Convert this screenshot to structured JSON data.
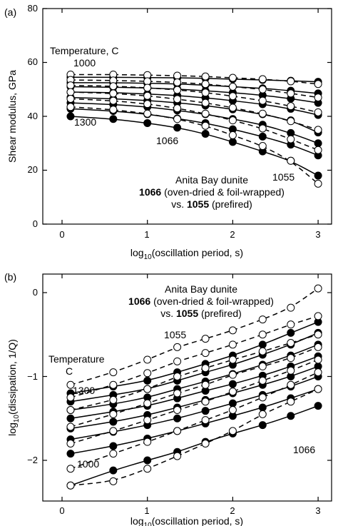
{
  "chart_data": [
    {
      "type": "scatter",
      "panel_label": "(a)",
      "xlabel": {
        "prefix": "log",
        "sub": "10",
        "suffix": "(oscillation period, s)"
      },
      "ylabel": "Shear modulus, GPa",
      "xlim": [
        -0.3,
        3.2
      ],
      "ylim": [
        0,
        80
      ],
      "xticks": [
        "0",
        "1",
        "2",
        "3"
      ],
      "yticks": [
        "0",
        "20",
        "40",
        "60",
        "80"
      ],
      "annotations": {
        "temperature_title": "Temperature, C",
        "temp_high": "1000",
        "temp_low": "1300",
        "label_1066": "1066",
        "label_1055": "1055",
        "caption_line1": "Anita Bay dunite",
        "caption_bold2": "1066",
        "caption_line2": " (oven-dried & foil-wrapped)",
        "caption_pre3": "vs. ",
        "caption_bold3": "1055",
        "caption_line3": " (prefired)"
      },
      "x": [
        0.1,
        0.6,
        1.0,
        1.35,
        1.68,
        2.0,
        2.35,
        2.68,
        3.0
      ],
      "series": [
        {
          "marker": "filled",
          "line": "solid",
          "values": [
            54.5,
            54.5,
            54.4,
            54.3,
            54.1,
            53.8,
            53.5,
            53.2,
            52.8
          ]
        },
        {
          "marker": "filled",
          "line": "solid",
          "values": [
            52.5,
            52.5,
            52.3,
            52.0,
            51.6,
            51.0,
            50.4,
            49.5,
            48.5
          ]
        },
        {
          "marker": "filled",
          "line": "solid",
          "values": [
            51.0,
            50.8,
            50.5,
            50.1,
            49.5,
            48.8,
            47.8,
            46.6,
            45.0
          ]
        },
        {
          "marker": "filled",
          "line": "solid",
          "values": [
            49.0,
            48.8,
            48.3,
            47.7,
            46.9,
            45.8,
            44.5,
            42.8,
            40.5
          ]
        },
        {
          "marker": "filled",
          "line": "solid",
          "values": [
            47.0,
            46.5,
            45.9,
            45.0,
            44.0,
            42.6,
            40.8,
            38.5,
            34.0
          ]
        },
        {
          "marker": "filled",
          "line": "solid",
          "values": [
            45.0,
            44.4,
            43.5,
            42.2,
            40.8,
            39.0,
            36.9,
            33.8,
            30.0
          ]
        },
        {
          "marker": "filled",
          "line": "solid",
          "values": [
            42.8,
            42.0,
            40.8,
            39.2,
            37.5,
            35.2,
            32.5,
            29.5,
            25.5
          ]
        },
        {
          "marker": "filled",
          "line": "solid",
          "values": [
            40.0,
            39.0,
            37.5,
            35.8,
            33.5,
            30.5,
            27.0,
            23.5,
            18.0
          ]
        },
        {
          "marker": "open",
          "line": "dashed",
          "values": [
            55.5,
            55.5,
            55.3,
            55.1,
            54.8,
            54.3,
            53.8,
            53.0,
            52.0
          ]
        },
        {
          "marker": "open",
          "line": "dashed",
          "values": [
            53.5,
            53.3,
            53.0,
            52.6,
            52.0,
            51.0,
            50.0,
            48.5,
            47.0
          ]
        },
        {
          "marker": "open",
          "line": "dashed",
          "values": [
            51.5,
            51.2,
            50.6,
            49.8,
            48.8,
            47.5,
            45.8,
            43.8,
            41.5
          ]
        },
        {
          "marker": "open",
          "line": "dashed",
          "values": [
            49.0,
            48.5,
            47.6,
            46.4,
            45.0,
            43.2,
            41.0,
            38.2,
            35.0
          ]
        },
        {
          "marker": "open",
          "line": "dashed",
          "values": [
            46.5,
            45.8,
            44.6,
            43.0,
            41.0,
            38.5,
            35.5,
            31.5,
            27.5
          ]
        },
        {
          "marker": "open",
          "line": "dashed",
          "values": [
            43.5,
            42.5,
            41.0,
            39.0,
            36.5,
            33.0,
            29.0,
            23.5,
            15.0
          ]
        }
      ]
    },
    {
      "type": "scatter",
      "panel_label": "(b)",
      "xlabel": {
        "prefix": "log",
        "sub": "10",
        "suffix": "(oscillation period, s)"
      },
      "ylabel": {
        "prefix": "log",
        "sub": "10",
        "suffix": "(dissipation, 1/Q)"
      },
      "xlim": [
        -0.3,
        3.2
      ],
      "ylim": [
        -2.4,
        0.2
      ],
      "xticks": [
        "0",
        "1",
        "2",
        "3"
      ],
      "yticks": [
        "0",
        "−1",
        "−2"
      ],
      "annotations": {
        "caption_line1": "Anita Bay dunite",
        "caption_bold2": "1066",
        "caption_line2": " (oven-dried & foil-wrapped)",
        "caption_pre3": "vs. ",
        "caption_bold3": "1055",
        "caption_line3": " (prefired)",
        "temperature_line1": "Temperature",
        "temperature_line2": "C",
        "temp_high": "1300",
        "temp_low": "1000",
        "label_1055": "1055",
        "label_1066": "1066"
      },
      "x": [
        0.1,
        0.6,
        1.0,
        1.35,
        1.68,
        2.0,
        2.35,
        2.68,
        3.0
      ],
      "series": [
        {
          "marker": "filled",
          "line": "solid",
          "values": [
            -1.2,
            -1.12,
            -1.05,
            -0.95,
            -0.85,
            -0.75,
            -0.62,
            -0.48,
            -0.35
          ]
        },
        {
          "marker": "filled",
          "line": "solid",
          "values": [
            -1.3,
            -1.22,
            -1.15,
            -1.05,
            -0.95,
            -0.86,
            -0.74,
            -0.62,
            -0.48
          ]
        },
        {
          "marker": "filled",
          "line": "solid",
          "values": [
            -1.4,
            -1.33,
            -1.25,
            -1.15,
            -1.06,
            -0.97,
            -0.86,
            -0.75,
            -0.62
          ]
        },
        {
          "marker": "filled",
          "line": "solid",
          "values": [
            -1.5,
            -1.42,
            -1.35,
            -1.26,
            -1.17,
            -1.09,
            -0.99,
            -0.88,
            -0.76
          ]
        },
        {
          "marker": "filled",
          "line": "solid",
          "values": [
            -1.62,
            -1.54,
            -1.46,
            -1.37,
            -1.28,
            -1.2,
            -1.1,
            -1.0,
            -0.88
          ]
        },
        {
          "marker": "filled",
          "line": "solid",
          "values": [
            -1.75,
            -1.66,
            -1.58,
            -1.5,
            -1.41,
            -1.32,
            -1.22,
            -1.12,
            -1.0
          ]
        },
        {
          "marker": "filled",
          "line": "solid",
          "values": [
            -1.92,
            -1.83,
            -1.74,
            -1.65,
            -1.56,
            -1.47,
            -1.37,
            -1.26,
            -1.15
          ]
        },
        {
          "marker": "filled",
          "line": "solid",
          "values": [
            -2.3,
            -2.12,
            -2.0,
            -1.9,
            -1.78,
            -1.68,
            -1.58,
            -1.47,
            -1.35
          ]
        },
        {
          "marker": "open",
          "line": "dashed",
          "values": [
            -1.1,
            -0.95,
            -0.8,
            -0.65,
            -0.55,
            -0.45,
            -0.32,
            -0.18,
            0.05
          ]
        },
        {
          "marker": "open",
          "line": "dashed",
          "values": [
            -1.25,
            -1.1,
            -0.96,
            -0.82,
            -0.72,
            -0.62,
            -0.5,
            -0.38,
            -0.28
          ]
        },
        {
          "marker": "open",
          "line": "dashed",
          "values": [
            -1.4,
            -1.28,
            -1.15,
            -1.0,
            -0.9,
            -0.8,
            -0.7,
            -0.6,
            -0.5
          ]
        },
        {
          "marker": "open",
          "line": "dashed",
          "values": [
            -1.6,
            -1.45,
            -1.32,
            -1.2,
            -1.1,
            -0.98,
            -0.88,
            -0.78,
            -0.65
          ]
        },
        {
          "marker": "open",
          "line": "dashed",
          "values": [
            -1.8,
            -1.65,
            -1.52,
            -1.4,
            -1.3,
            -1.18,
            -1.05,
            -0.93,
            -0.8
          ]
        },
        {
          "marker": "open",
          "line": "dashed",
          "values": [
            -2.1,
            -1.92,
            -1.78,
            -1.65,
            -1.52,
            -1.4,
            -1.25,
            -1.1,
            -0.95
          ]
        },
        {
          "marker": "open",
          "line": "dashed",
          "values": [
            -2.3,
            -2.25,
            -2.1,
            -1.95,
            -1.8,
            -1.65,
            -1.45,
            -1.3,
            -1.15
          ]
        }
      ]
    }
  ]
}
